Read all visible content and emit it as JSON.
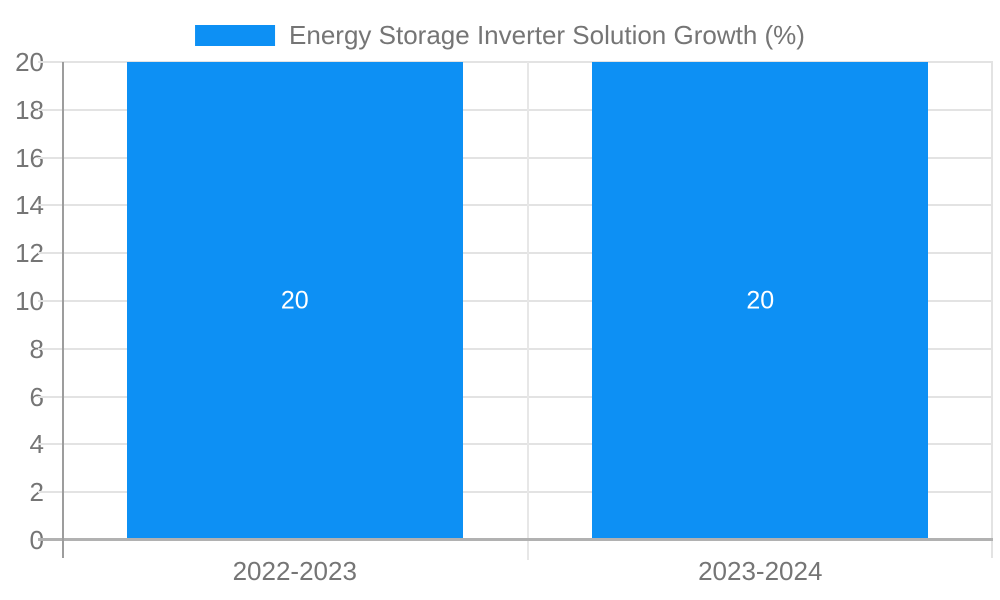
{
  "legend": {
    "label": "Energy Storage Inverter Solution Growth (%)",
    "swatch_color": "#0d90f4"
  },
  "chart_data": {
    "type": "bar",
    "title": "Energy Storage Inverter Solution Growth (%)",
    "categories": [
      "2022-2023",
      "2023-2024"
    ],
    "values": [
      20,
      20
    ],
    "bar_value_labels": [
      "20",
      "20"
    ],
    "xlabel": "",
    "ylabel": "",
    "ylim": [
      0,
      20
    ],
    "yticks": [
      0,
      2,
      4,
      6,
      8,
      10,
      12,
      14,
      16,
      18,
      20
    ],
    "grid": true,
    "legend_position": "top",
    "colors": {
      "bar": "#0d90f4",
      "bar_label_text": "#ffffff",
      "axis_text": "#757575",
      "gridline": "#e3e3e3",
      "axis_line": "#9d9d9d",
      "baseline": "#b1b1b1",
      "background": "#ffffff"
    }
  }
}
